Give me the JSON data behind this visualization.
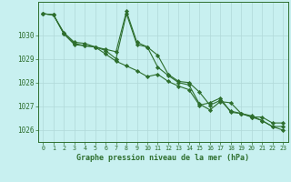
{
  "title": "Graphe pression niveau de la mer (hPa)",
  "bg_color": "#c8f0f0",
  "grid_color": "#b0d8d8",
  "line_color": "#2d6e2d",
  "marker_color": "#2d6e2d",
  "xlim": [
    -0.5,
    23.5
  ],
  "ylim": [
    1025.5,
    1031.4
  ],
  "yticks": [
    1026,
    1027,
    1028,
    1029,
    1030
  ],
  "xticks": [
    0,
    1,
    2,
    3,
    4,
    5,
    6,
    7,
    8,
    9,
    10,
    11,
    12,
    13,
    14,
    15,
    16,
    17,
    18,
    19,
    20,
    21,
    22,
    23
  ],
  "series1_x": [
    0,
    1,
    2,
    3,
    4,
    5,
    6,
    7,
    8,
    9,
    10,
    11,
    12,
    13,
    14,
    15,
    16,
    17,
    18,
    19,
    20,
    21,
    22,
    23
  ],
  "series1_y": [
    1030.9,
    1030.85,
    1030.1,
    1029.7,
    1029.65,
    1029.5,
    1029.4,
    1029.3,
    1031.0,
    1029.7,
    1029.5,
    1029.15,
    1028.35,
    1028.05,
    1028.0,
    1027.6,
    1027.05,
    1027.25,
    1026.8,
    1026.7,
    1026.55,
    1026.55,
    1026.3,
    1026.3
  ],
  "series2_x": [
    0,
    1,
    2,
    3,
    4,
    5,
    6,
    7,
    8,
    9,
    10,
    11,
    12,
    13,
    14,
    15,
    16,
    17,
    18,
    19,
    20,
    21,
    22,
    23
  ],
  "series2_y": [
    1030.9,
    1030.85,
    1030.05,
    1029.6,
    1029.55,
    1029.5,
    1029.35,
    1029.0,
    1030.9,
    1029.6,
    1029.5,
    1028.65,
    1028.3,
    1028.0,
    1027.9,
    1027.1,
    1026.85,
    1027.2,
    1027.15,
    1026.7,
    1026.6,
    1026.4,
    1026.15,
    1026.15
  ],
  "series3_x": [
    0,
    1,
    2,
    3,
    4,
    5,
    6,
    7,
    8,
    9,
    10,
    11,
    12,
    13,
    14,
    15,
    16,
    17,
    18,
    19,
    20,
    21,
    22,
    23
  ],
  "series3_y": [
    1030.9,
    1030.85,
    1030.05,
    1029.65,
    1029.55,
    1029.5,
    1029.2,
    1028.9,
    1028.7,
    1028.5,
    1028.25,
    1028.35,
    1028.05,
    1027.85,
    1027.7,
    1027.05,
    1027.15,
    1027.35,
    1026.75,
    1026.7,
    1026.55,
    1026.4,
    1026.15,
    1026.0
  ]
}
